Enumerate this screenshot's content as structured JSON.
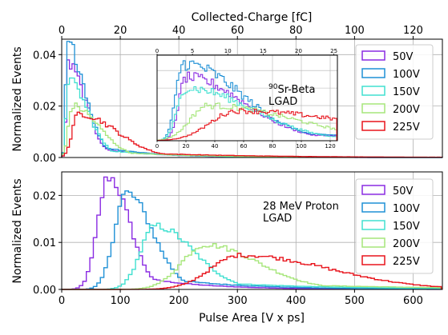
{
  "colors": {
    "50V": "#8a2be2",
    "100V": "#1e90d6",
    "150V": "#40e0d0",
    "200V": "#a6e67a",
    "225V": "#e8141c",
    "grid": "#b0b0b0"
  },
  "chart_data": [
    {
      "type": "line",
      "title": "",
      "panel": "top",
      "xlabel": "",
      "ylabel": "Normalized Events",
      "top_xlabel": "Collected-Charge [fC]",
      "top_xticks": [
        "0",
        "20",
        "40",
        "60",
        "80",
        "100",
        "120"
      ],
      "ylim": [
        0,
        0.046
      ],
      "yticks": [
        "0.00",
        "0.02",
        "0.04"
      ],
      "annotation_sup": "90",
      "annotation_line1": "Sr-Beta",
      "annotation_line2": "LGAD",
      "legend_placement": "top-right",
      "series": [
        {
          "name": "50V",
          "peak_x": 20,
          "peak_y": 0.036,
          "width_lo": 5,
          "width_hi": 40
        },
        {
          "name": "100V",
          "peak_x": 18,
          "peak_y": 0.044,
          "width_lo": 5,
          "width_hi": 40
        },
        {
          "name": "150V",
          "peak_x": 20,
          "peak_y": 0.03,
          "width_lo": 6,
          "width_hi": 45
        },
        {
          "name": "200V",
          "peak_x": 35,
          "peak_y": 0.02,
          "width_lo": 12,
          "width_hi": 60
        },
        {
          "name": "225V",
          "peak_x": 55,
          "peak_y": 0.017,
          "width_lo": 18,
          "width_hi": 85
        }
      ],
      "inset": {
        "xlim": [
          0,
          125
        ],
        "xticks": [
          "0",
          "20",
          "40",
          "60",
          "80",
          "100",
          "120"
        ],
        "top_xticks": [
          "0",
          "5",
          "10",
          "15",
          "20",
          "25"
        ]
      }
    },
    {
      "type": "line",
      "title": "",
      "panel": "bottom",
      "xlabel": "Pulse Area [V x ps]",
      "ylabel": "Normalized Events",
      "xlim": [
        0,
        650
      ],
      "xticks": [
        "0",
        "100",
        "200",
        "300",
        "400",
        "500",
        "600"
      ],
      "ylim": [
        0,
        0.025
      ],
      "yticks": [
        "0.00",
        "0.01",
        "0.02"
      ],
      "annotation_line1": "28 MeV Proton",
      "annotation_line2": "LGAD",
      "legend_placement": "top-right",
      "series": [
        {
          "name": "50V",
          "peak_x": 80,
          "peak_y": 0.024,
          "width_lo": 18,
          "width_hi": 35
        },
        {
          "name": "100V",
          "peak_x": 110,
          "peak_y": 0.0205,
          "width_lo": 20,
          "width_hi": 45
        },
        {
          "name": "150V",
          "peak_x": 160,
          "peak_y": 0.0135,
          "width_lo": 25,
          "width_hi": 65
        },
        {
          "name": "200V",
          "peak_x": 245,
          "peak_y": 0.0095,
          "width_lo": 40,
          "width_hi": 90
        },
        {
          "name": "225V",
          "peak_x": 305,
          "peak_y": 0.0073,
          "width_lo": 50,
          "width_hi": 150
        }
      ]
    }
  ]
}
